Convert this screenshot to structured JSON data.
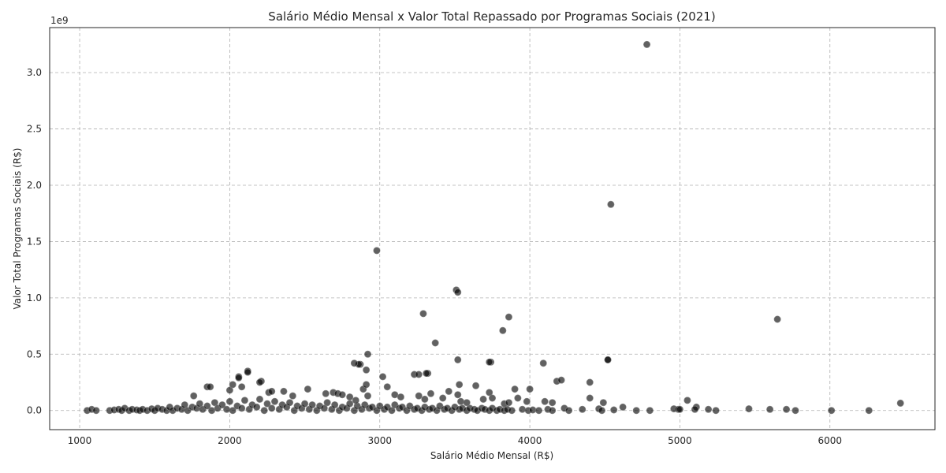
{
  "chart_data": {
    "type": "scatter",
    "title": "Salário Médio Mensal x Valor Total Repassado por Programas Sociais (2021)",
    "xlabel": "Salário Médio Mensal (R$)",
    "ylabel": "Valor Total Programas Sociais (R$)",
    "y_offset_text": "1e9",
    "xlim": [
      800,
      6700
    ],
    "ylim": [
      -0.17,
      3.4
    ],
    "x_ticks": [
      1000,
      2000,
      3000,
      4000,
      5000,
      6000
    ],
    "x_tick_labels": [
      "1000",
      "2000",
      "3000",
      "4000",
      "5000",
      "6000"
    ],
    "y_ticks": [
      0,
      0.5,
      1.0,
      1.5,
      2.0,
      2.5,
      3.0
    ],
    "y_tick_labels": [
      "0.0",
      "0.5",
      "1.0",
      "1.5",
      "2.0",
      "2.5",
      "3.0"
    ],
    "grid": true,
    "y_unit_scale": 1000000000,
    "x": [
      1050,
      1080,
      1110,
      1200,
      1230,
      1260,
      1280,
      1300,
      1330,
      1350,
      1380,
      1400,
      1420,
      1450,
      1480,
      1500,
      1520,
      1550,
      1580,
      1600,
      1620,
      1650,
      1680,
      1700,
      1720,
      1750,
      1780,
      1800,
      1820,
      1850,
      1880,
      1900,
      1920,
      1950,
      1980,
      2000,
      2020,
      2050,
      2080,
      2100,
      2130,
      2150,
      2180,
      2200,
      2230,
      2250,
      2280,
      2300,
      2330,
      2350,
      2380,
      2400,
      2430,
      2450,
      2480,
      2500,
      2530,
      2550,
      2580,
      2600,
      2630,
      2650,
      2680,
      2700,
      2730,
      2750,
      2780,
      2800,
      2830,
      2850,
      2880,
      2900,
      2930,
      2950,
      2980,
      3000,
      3030,
      3050,
      3080,
      3100,
      3130,
      3150,
      3180,
      3200,
      3230,
      3250,
      3280,
      3300,
      3330,
      3350,
      3380,
      3400,
      3430,
      3450,
      3480,
      3500,
      3530,
      3550,
      3580,
      3600,
      3630,
      3650,
      3680,
      3700,
      3730,
      3750,
      3780,
      3800,
      3830,
      3850,
      3880,
      3950,
      3990,
      4020,
      4060,
      4120,
      4150,
      4230,
      4260,
      4350,
      4460,
      4480,
      4560,
      4620,
      4710,
      4800,
      4960,
      4990,
      5110,
      5190,
      5240,
      5460,
      5600,
      5710,
      5770,
      6010,
      6260,
      1760,
      1850,
      1870,
      2000,
      2020,
      2060,
      2080,
      2120,
      2210,
      2260,
      2280,
      2360,
      2420,
      2520,
      2640,
      2690,
      2720,
      2750,
      2800,
      2840,
      2870,
      2890,
      2910,
      2920,
      3020,
      3050,
      3100,
      3140,
      3230,
      3260,
      3300,
      3320,
      3340,
      3420,
      3460,
      3520,
      3530,
      3540,
      3580,
      3640,
      3690,
      3730,
      3740,
      3750,
      3830,
      3860,
      3900,
      3920,
      3980,
      4000,
      4100,
      4150,
      4180,
      4210,
      4400,
      4490,
      4520,
      5000,
      5050,
      5100,
      4780,
      4540,
      2980,
      3510,
      3520,
      3290,
      3370,
      3860,
      3820,
      5650,
      2920,
      2910,
      3520,
      3730,
      4090,
      2860,
      2830,
      3310,
      3260,
      4520,
      4400,
      6470,
      2120,
      2060,
      2200
    ],
    "y": [
      0.0,
      0.01,
      0.0,
      0.0,
      0.005,
      0.01,
      0.0,
      0.02,
      0.0,
      0.01,
      0.005,
      0.0,
      0.01,
      0.0,
      0.015,
      0.0,
      0.02,
      0.01,
      0.0,
      0.03,
      0.0,
      0.02,
      0.01,
      0.05,
      0.0,
      0.03,
      0.02,
      0.06,
      0.01,
      0.04,
      0.0,
      0.07,
      0.02,
      0.05,
      0.01,
      0.08,
      0.0,
      0.04,
      0.02,
      0.09,
      0.01,
      0.05,
      0.03,
      0.1,
      0.0,
      0.06,
      0.02,
      0.08,
      0.01,
      0.05,
      0.03,
      0.07,
      0.0,
      0.04,
      0.02,
      0.06,
      0.01,
      0.05,
      0.0,
      0.04,
      0.02,
      0.07,
      0.01,
      0.05,
      0.0,
      0.03,
      0.02,
      0.06,
      0.0,
      0.04,
      0.01,
      0.05,
      0.02,
      0.03,
      0.0,
      0.04,
      0.01,
      0.03,
      0.0,
      0.05,
      0.02,
      0.03,
      0.0,
      0.04,
      0.01,
      0.02,
      0.0,
      0.03,
      0.01,
      0.02,
      0.0,
      0.04,
      0.01,
      0.02,
      0.0,
      0.03,
      0.01,
      0.02,
      0.0,
      0.02,
      0.01,
      0.0,
      0.02,
      0.01,
      0.0,
      0.02,
      0.0,
      0.01,
      0.0,
      0.01,
      0.0,
      0.01,
      0.0,
      0.005,
      0.0,
      0.01,
      0.0,
      0.02,
      0.0,
      0.01,
      0.015,
      0.0,
      0.005,
      0.03,
      0.0,
      0.0,
      0.015,
      0.01,
      0.03,
      0.01,
      0.0,
      0.015,
      0.01,
      0.01,
      0.0,
      0.0,
      0.0,
      0.13,
      0.21,
      0.21,
      0.18,
      0.23,
      0.3,
      0.21,
      0.35,
      0.26,
      0.16,
      0.17,
      0.17,
      0.13,
      0.19,
      0.15,
      0.16,
      0.15,
      0.14,
      0.12,
      0.09,
      0.41,
      0.19,
      0.23,
      0.13,
      0.3,
      0.21,
      0.14,
      0.12,
      0.32,
      0.13,
      0.1,
      0.33,
      0.15,
      0.11,
      0.17,
      0.14,
      0.23,
      0.08,
      0.07,
      0.22,
      0.1,
      0.16,
      0.43,
      0.11,
      0.06,
      0.07,
      0.19,
      0.11,
      0.08,
      0.19,
      0.08,
      0.07,
      0.26,
      0.27,
      0.11,
      0.07,
      0.45,
      0.01,
      0.09,
      0.01,
      3.25,
      1.83,
      1.42,
      1.07,
      1.05,
      0.86,
      0.6,
      0.83,
      0.71,
      0.81,
      0.5,
      0.36,
      0.45,
      0.43,
      0.42,
      0.41,
      0.42,
      0.33,
      0.32,
      0.45,
      0.25,
      0.065,
      0.34,
      0.29,
      0.25
    ]
  }
}
